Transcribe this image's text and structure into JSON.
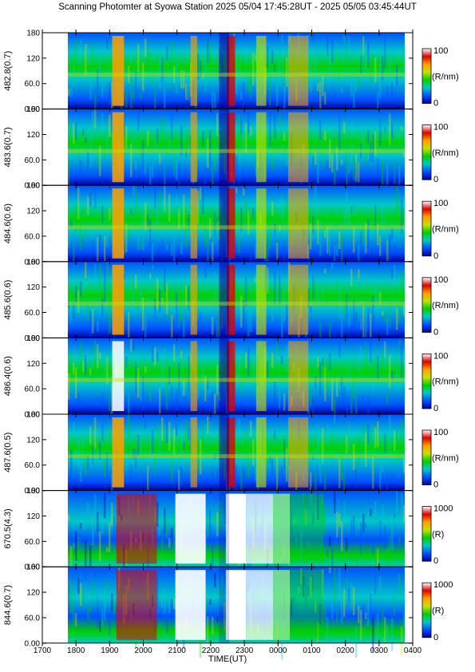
{
  "title": "Scanning Photomter at Syowa Station 2025 05/04 17:45:28UT - 2025 05/05 03:45:44UT",
  "chart_data": {
    "type": "heatmap",
    "xlabel": "TIME(UT)",
    "x_ticks": [
      "1700",
      "1800",
      "1900",
      "2000",
      "2100",
      "2200",
      "2300",
      "0000",
      "0100",
      "0200",
      "0300",
      "0400"
    ],
    "xlim": [
      "17:00",
      "04:00"
    ],
    "data_range": [
      "17:45:28",
      "03:45:44"
    ],
    "y_ticks": [
      "0.00",
      "60.0",
      "120",
      "180"
    ],
    "ylim": [
      0,
      180
    ],
    "colormap": [
      "#0000a0",
      "#0050ff",
      "#00c8c8",
      "#00d000",
      "#c8e000",
      "#ffa000",
      "#e00000",
      "#ffffff"
    ],
    "panels": [
      {
        "label": "482.8(0.7)",
        "cb_max": "100",
        "cb_min": "0",
        "cb_unit": "(R/nm)"
      },
      {
        "label": "483.6(0.7)",
        "cb_max": "100",
        "cb_min": "0",
        "cb_unit": "(R/nm)"
      },
      {
        "label": "484.6(0.6)",
        "cb_max": "100",
        "cb_min": "0",
        "cb_unit": "(R/nm)"
      },
      {
        "label": "485.6(0.6)",
        "cb_max": "100",
        "cb_min": "0",
        "cb_unit": "(R/nm)"
      },
      {
        "label": "486.4(0.6)",
        "cb_max": "100",
        "cb_min": "0",
        "cb_unit": "(R/nm)"
      },
      {
        "label": "487.6(0.5)",
        "cb_max": "100",
        "cb_min": "0",
        "cb_unit": "(R/nm)"
      },
      {
        "label": "670.5(4.3)",
        "cb_max": "1000",
        "cb_min": "0",
        "cb_unit": "(R)"
      },
      {
        "label": "844.6(0.7)",
        "cb_max": "1000",
        "cb_min": "0",
        "cb_unit": "(R)"
      }
    ]
  }
}
